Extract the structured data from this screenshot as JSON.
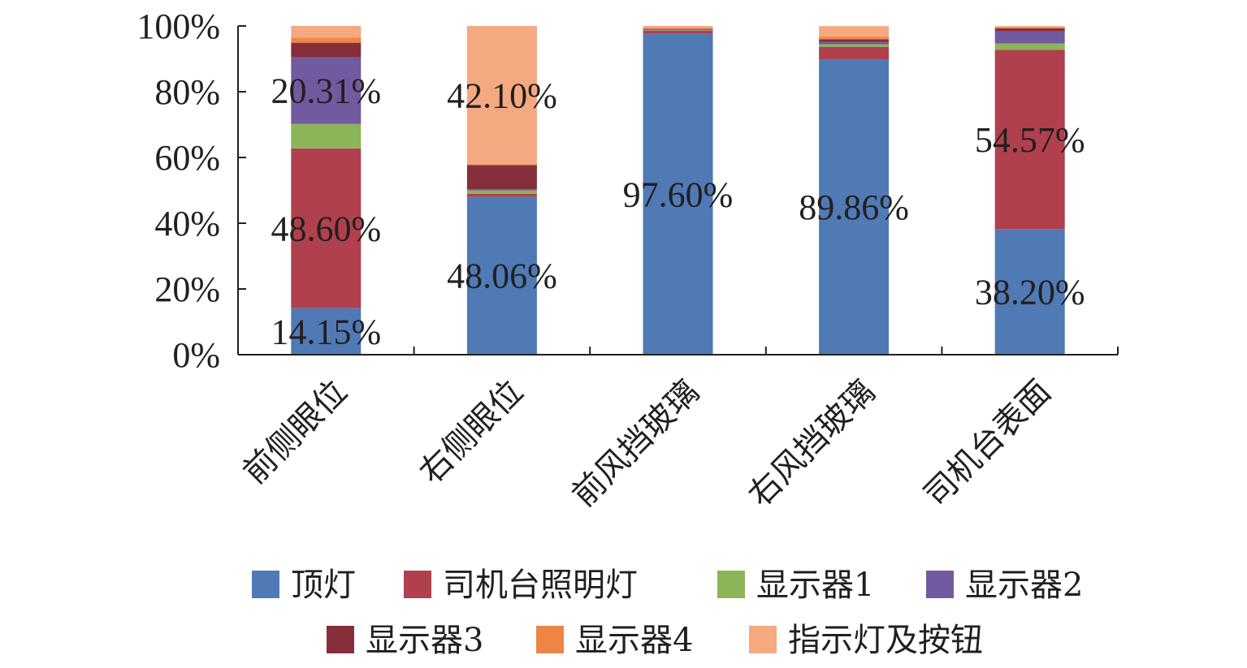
{
  "chart_data": {
    "type": "bar",
    "stacked": true,
    "percent": true,
    "title": "",
    "xlabel": "",
    "ylabel": "",
    "ylim": [
      0,
      100
    ],
    "yticks": [
      "0%",
      "20%",
      "40%",
      "60%",
      "80%",
      "100%"
    ],
    "categories": [
      "前侧眼位",
      "右侧眼位",
      "前风挡玻璃",
      "右风挡玻璃",
      "司机台表面"
    ],
    "series": [
      {
        "name": "顶灯",
        "color": "#4f7ab5",
        "values": [
          14.15,
          48.06,
          97.6,
          89.86,
          38.2
        ]
      },
      {
        "name": "司机台照明灯",
        "color": "#b0404e",
        "values": [
          48.6,
          0.9,
          1.0,
          3.8,
          54.57
        ]
      },
      {
        "name": "显示器1",
        "color": "#8bb556",
        "values": [
          7.45,
          1.0,
          0.1,
          0.8,
          1.9
        ]
      },
      {
        "name": "显示器2",
        "color": "#725aa0",
        "values": [
          20.31,
          0.34,
          0.3,
          0.7,
          3.7
        ]
      },
      {
        "name": "显示器3",
        "color": "#862f3a",
        "values": [
          4.4,
          7.4,
          0.1,
          0.8,
          0.9
        ]
      },
      {
        "name": "显示器4",
        "color": "#ee8545",
        "values": [
          1.5,
          0.2,
          0.3,
          0.8,
          0.4
        ]
      },
      {
        "name": "指示灯及按钮",
        "color": "#f4a981",
        "values": [
          3.6,
          42.1,
          0.6,
          3.2,
          0.3
        ]
      }
    ],
    "data_labels": [
      {
        "category": 0,
        "series": 0,
        "text": "14.15%"
      },
      {
        "category": 0,
        "series": 1,
        "text": "48.60%"
      },
      {
        "category": 0,
        "series": 3,
        "text": "20.31%"
      },
      {
        "category": 1,
        "series": 0,
        "text": "48.06%"
      },
      {
        "category": 1,
        "series": 6,
        "text": "42.10%"
      },
      {
        "category": 2,
        "series": 0,
        "text": "97.60%"
      },
      {
        "category": 3,
        "series": 0,
        "text": "89.86%"
      },
      {
        "category": 4,
        "series": 0,
        "text": "38.20%"
      },
      {
        "category": 4,
        "series": 1,
        "text": "54.57%"
      }
    ],
    "legend": {
      "position": "bottom",
      "rows": [
        [
          0,
          1,
          2,
          3
        ],
        [
          4,
          5,
          6
        ]
      ]
    },
    "grid": false
  }
}
